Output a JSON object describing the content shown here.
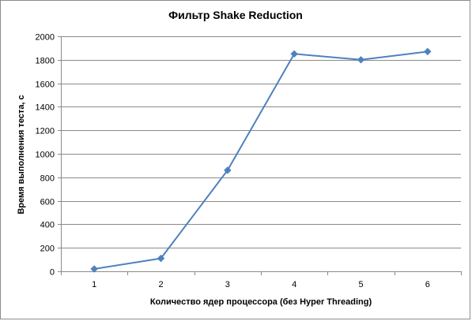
{
  "chart_data": {
    "type": "line",
    "title": "Фильтр Shake Reduction",
    "xlabel": "Количество  ядер процессора  (без Hyper Threading)",
    "ylabel": "Время выполнения теста, с",
    "categories": [
      "1",
      "2",
      "3",
      "4",
      "5",
      "6"
    ],
    "series": [
      {
        "values": [
          20,
          110,
          860,
          1850,
          1800,
          1870
        ],
        "color": "#4f81bd"
      }
    ],
    "ylim": [
      0,
      2000
    ],
    "yticks": [
      0,
      200,
      400,
      600,
      800,
      1000,
      1200,
      1400,
      1600,
      1800,
      2000
    ],
    "grid": true,
    "legend": "none"
  }
}
